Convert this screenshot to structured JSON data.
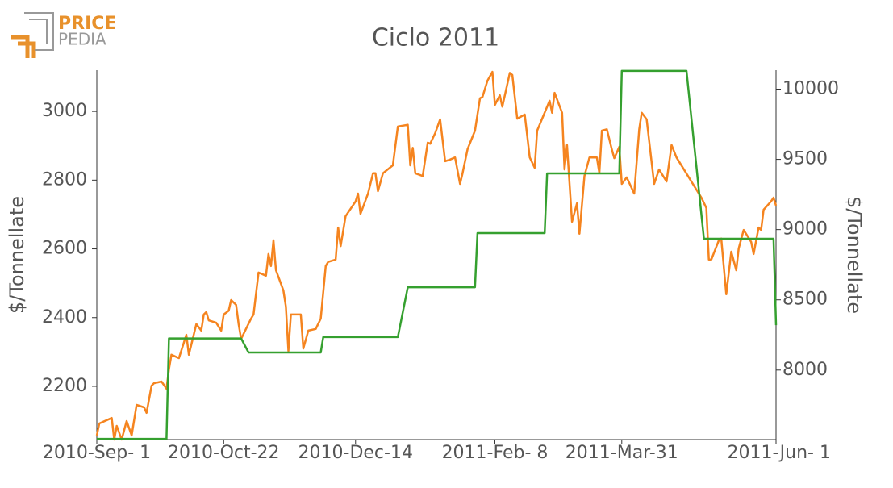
{
  "logo": {
    "top": "PRICE",
    "bottom": "PEDIA"
  },
  "chart_data": {
    "type": "line",
    "title": "Ciclo 2011",
    "y_label": "$/Tonnellate",
    "y2_label": "$/Tonnellate",
    "xlim": [
      "2010-09-01",
      "2011-06-01"
    ],
    "xticks": [
      {
        "value": "2010-09-01",
        "label": "2010-Sep- 1"
      },
      {
        "value": "2010-10-22",
        "label": "2010-Oct-22"
      },
      {
        "value": "2010-12-14",
        "label": "2010-Dec-14"
      },
      {
        "value": "2011-02-08",
        "label": "2011-Feb- 8"
      },
      {
        "value": "2011-03-31",
        "label": "2011-Mar-31"
      },
      {
        "value": "2011-06-01",
        "label": "2011-Jun- 1"
      }
    ],
    "ylim": [
      2045,
      3120
    ],
    "yticks": [
      2200,
      2400,
      2600,
      2800,
      3000
    ],
    "y2lim": [
      7505,
      10135
    ],
    "y2ticks": [
      8000,
      8500,
      9000,
      9500,
      10000
    ],
    "series": [
      {
        "name": "orange",
        "color": "#f5841f",
        "axis": "y",
        "x": [
          "2010-09-01",
          "2010-09-02",
          "2010-09-07",
          "2010-09-08",
          "2010-09-09",
          "2010-09-11",
          "2010-09-13",
          "2010-09-15",
          "2010-09-17",
          "2010-09-20",
          "2010-09-21",
          "2010-09-23",
          "2010-09-24",
          "2010-09-27",
          "2010-09-29",
          "2010-09-30",
          "2010-10-01",
          "2010-10-04",
          "2010-10-07",
          "2010-10-08",
          "2010-10-11",
          "2010-10-13",
          "2010-10-14",
          "2010-10-15",
          "2010-10-16",
          "2010-10-19",
          "2010-10-21",
          "2010-10-22",
          "2010-10-24",
          "2010-10-25",
          "2010-10-27",
          "2010-10-28",
          "2010-10-29",
          "2010-11-02",
          "2010-11-03",
          "2010-11-05",
          "2010-11-08",
          "2010-11-09",
          "2010-11-10",
          "2010-11-11",
          "2010-11-12",
          "2010-11-15",
          "2010-11-16",
          "2010-11-17",
          "2010-11-18",
          "2010-11-22",
          "2010-11-23",
          "2010-11-25",
          "2010-11-28",
          "2010-11-30",
          "2010-12-02",
          "2010-12-03",
          "2010-12-06",
          "2010-12-07",
          "2010-12-08",
          "2010-12-10",
          "2010-12-14",
          "2010-12-15",
          "2010-12-16",
          "2010-12-19",
          "2010-12-21",
          "2010-12-22",
          "2010-12-23",
          "2010-12-25",
          "2010-12-29",
          "2010-12-31",
          "2011-01-04",
          "2011-01-05",
          "2011-01-06",
          "2011-01-07",
          "2011-01-10",
          "2011-01-12",
          "2011-01-13",
          "2011-01-15",
          "2011-01-17",
          "2011-01-19",
          "2011-01-21",
          "2011-01-23",
          "2011-01-25",
          "2011-01-26",
          "2011-01-28",
          "2011-01-31",
          "2011-02-02",
          "2011-02-03",
          "2011-02-05",
          "2011-02-07",
          "2011-02-08",
          "2011-02-10",
          "2011-02-11",
          "2011-02-14",
          "2011-02-15",
          "2011-02-17",
          "2011-02-20",
          "2011-02-22",
          "2011-02-24",
          "2011-02-25",
          "2011-03-02",
          "2011-03-03",
          "2011-03-04",
          "2011-03-07",
          "2011-03-08",
          "2011-03-09",
          "2011-03-11",
          "2011-03-13",
          "2011-03-14",
          "2011-03-16",
          "2011-03-18",
          "2011-03-21",
          "2011-03-22",
          "2011-03-23",
          "2011-03-25",
          "2011-03-27",
          "2011-03-28",
          "2011-03-30",
          "2011-03-31",
          "2011-04-02",
          "2011-04-05",
          "2011-04-07",
          "2011-04-08",
          "2011-04-10",
          "2011-04-13",
          "2011-04-15",
          "2011-04-18",
          "2011-04-20",
          "2011-04-22",
          "2011-05-02",
          "2011-05-04",
          "2011-05-05",
          "2011-05-06",
          "2011-05-09",
          "2011-05-10",
          "2011-05-12",
          "2011-05-14",
          "2011-05-16",
          "2011-05-17",
          "2011-05-19",
          "2011-05-22",
          "2011-05-23",
          "2011-05-25",
          "2011-05-26",
          "2011-05-27",
          "2011-05-30",
          "2011-05-31",
          "2011-06-01"
        ],
        "values": [
          2057,
          2092,
          2108,
          2045,
          2085,
          2045,
          2099,
          2057,
          2146,
          2139,
          2123,
          2202,
          2209,
          2214,
          2193,
          2249,
          2292,
          2282,
          2350,
          2292,
          2381,
          2362,
          2409,
          2416,
          2392,
          2385,
          2362,
          2409,
          2420,
          2451,
          2437,
          2381,
          2338,
          2397,
          2409,
          2531,
          2522,
          2585,
          2550,
          2625,
          2538,
          2479,
          2432,
          2303,
          2409,
          2409,
          2310,
          2362,
          2367,
          2397,
          2550,
          2562,
          2569,
          2662,
          2608,
          2695,
          2738,
          2761,
          2702,
          2761,
          2820,
          2820,
          2768,
          2820,
          2843,
          2956,
          2961,
          2843,
          2894,
          2820,
          2812,
          2909,
          2906,
          2937,
          2977,
          2855,
          2860,
          2866,
          2789,
          2820,
          2890,
          2944,
          3038,
          3042,
          3089,
          3115,
          3019,
          3047,
          3014,
          3112,
          3106,
          2979,
          2991,
          2866,
          2836,
          2944,
          3031,
          2996,
          3054,
          2996,
          2831,
          2902,
          2679,
          2733,
          2644,
          2812,
          2866,
          2866,
          2820,
          2944,
          2948,
          2890,
          2864,
          2897,
          2789,
          2808,
          2761,
          2948,
          2996,
          2977,
          2789,
          2831,
          2796,
          2902,
          2866,
          2749,
          2719,
          2569,
          2569,
          2625,
          2630,
          2468,
          2592,
          2538,
          2601,
          2655,
          2620,
          2585,
          2662,
          2655,
          2714,
          2738,
          2749,
          2726
        ]
      },
      {
        "name": "green",
        "color": "#35a02f",
        "axis": "y2",
        "x": [
          "2010-09-01",
          "2010-09-29",
          "2010-09-30",
          "2010-10-29",
          "2010-11-01",
          "2010-11-30",
          "2010-12-01",
          "2010-12-31",
          "2011-01-04",
          "2011-01-31",
          "2011-02-01",
          "2011-02-28",
          "2011-03-01",
          "2011-03-30",
          "2011-03-31",
          "2011-04-26",
          "2011-05-03",
          "2011-05-31",
          "2011-06-01"
        ],
        "values": [
          7510,
          7510,
          8225,
          8225,
          8125,
          8125,
          8235,
          8235,
          8590,
          8590,
          8975,
          8975,
          9400,
          9400,
          10130,
          10130,
          8935,
          8935,
          8320
        ]
      }
    ]
  }
}
